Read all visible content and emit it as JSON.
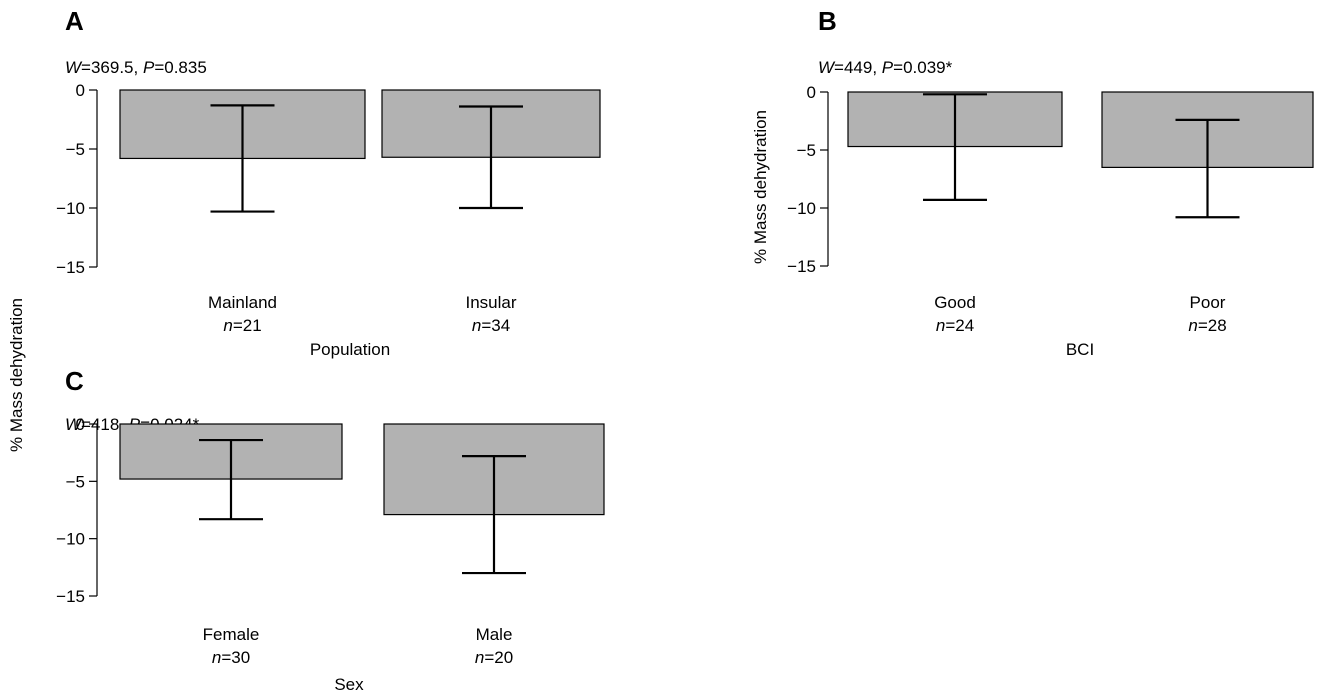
{
  "figure": {
    "y_axis_title": "% Mass dehydration",
    "b_axis_title": "% Mass dehydration"
  },
  "colors": {
    "bar_fill": "#b2b2b2",
    "ink": "#000000"
  },
  "chart_data": [
    {
      "panel": "A",
      "type": "bar",
      "stat": {
        "W": "369.5",
        "P": "0.835",
        "flag": ""
      },
      "xlabel": "Population",
      "ylim": [
        -15,
        0
      ],
      "yticks": [
        "0",
        "−5",
        "−10",
        "−15"
      ],
      "categories": [
        "Mainland",
        "Insular"
      ],
      "n": [
        "21",
        "34"
      ],
      "values": [
        -5.8,
        -5.7
      ],
      "error_low": [
        -10.3,
        -10.0
      ],
      "error_high": [
        -1.3,
        -1.4
      ]
    },
    {
      "panel": "B",
      "type": "bar",
      "stat": {
        "W": "449",
        "P": "0.039",
        "flag": "*"
      },
      "xlabel": "BCI",
      "ylim": [
        -15,
        0
      ],
      "yticks": [
        "0",
        "−5",
        "−10",
        "−15"
      ],
      "categories": [
        "Good",
        "Poor"
      ],
      "n": [
        "24",
        "28"
      ],
      "values": [
        -4.7,
        -6.5
      ],
      "error_low": [
        -9.3,
        -10.8
      ],
      "error_high": [
        -0.2,
        -2.4
      ]
    },
    {
      "panel": "C",
      "type": "bar",
      "stat": {
        "W": "418",
        "P": "0.024",
        "flag": "*"
      },
      "xlabel": "Sex",
      "ylim": [
        -15,
        0
      ],
      "yticks": [
        "0",
        "−5",
        "−10",
        "−15"
      ],
      "categories": [
        "Female",
        "Male"
      ],
      "n": [
        "30",
        "20"
      ],
      "values": [
        -4.8,
        -7.9
      ],
      "error_low": [
        -8.3,
        -13.0
      ],
      "error_high": [
        -1.4,
        -2.8
      ]
    }
  ]
}
